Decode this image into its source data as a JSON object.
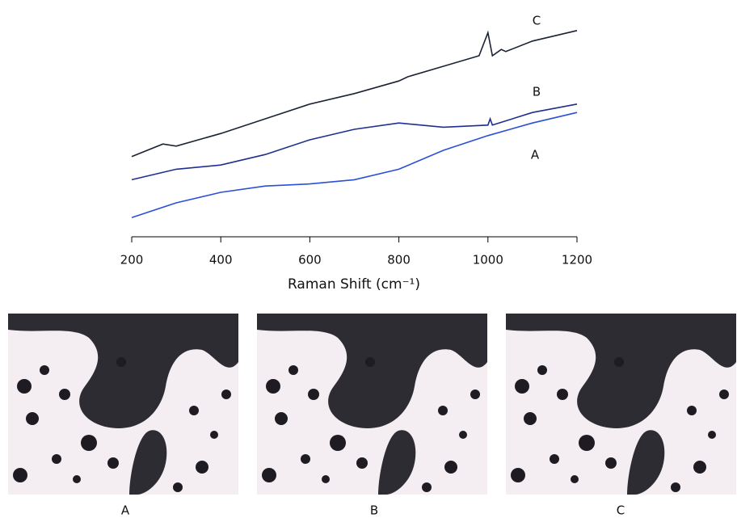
{
  "chart_data": {
    "type": "line",
    "xlabel": "Raman Shift (cm⁻¹)",
    "xlim": [
      200,
      1200
    ],
    "xticks": [
      200,
      400,
      600,
      800,
      1000,
      1200
    ],
    "ylim": [
      0,
      100
    ],
    "series": [
      {
        "name": "A",
        "color": "#2a4fd8",
        "x": [
          200,
          300,
          400,
          500,
          600,
          700,
          800,
          900,
          1000,
          1100,
          1200
        ],
        "values": [
          8,
          15,
          20,
          23,
          24,
          26,
          31,
          40,
          47,
          53,
          58
        ]
      },
      {
        "name": "B",
        "color": "#1f2f8f",
        "x": [
          200,
          300,
          400,
          500,
          600,
          700,
          800,
          850,
          900,
          1000,
          1005,
          1010,
          1100,
          1200
        ],
        "values": [
          26,
          31,
          33,
          38,
          45,
          50,
          53,
          52,
          51,
          52,
          55,
          52,
          58,
          62
        ]
      },
      {
        "name": "C",
        "color": "#1a2233",
        "x": [
          200,
          270,
          300,
          400,
          500,
          600,
          700,
          800,
          820,
          900,
          980,
          1000,
          1010,
          1030,
          1040,
          1100,
          1200
        ],
        "values": [
          37,
          43,
          42,
          48,
          55,
          62,
          67,
          73,
          75,
          80,
          85,
          96,
          85,
          88,
          87,
          92,
          97
        ]
      }
    ]
  },
  "images": [
    {
      "label": "A"
    },
    {
      "label": "B"
    },
    {
      "label": "C"
    }
  ]
}
